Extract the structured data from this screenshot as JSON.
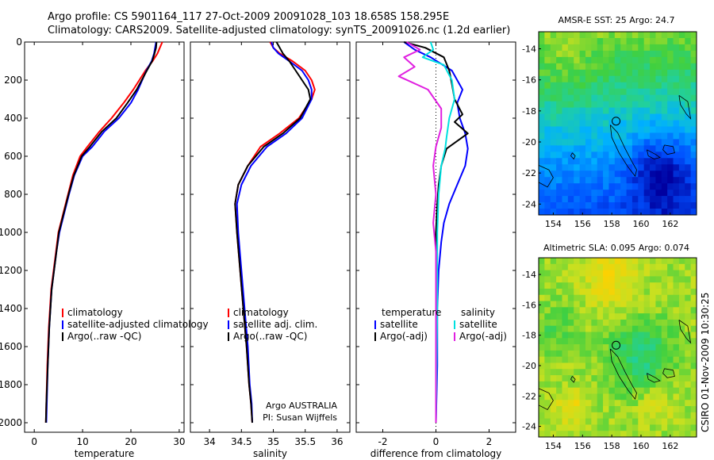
{
  "header": {
    "line1": "Argo profile: CS 5901164_117 27-Oct-2009 20091028_103 18.658S 158.295E",
    "line2": "Climatology: CARS2009. Satellite-adjusted climatology: synTS_20091026.nc (1.2d earlier)"
  },
  "side_label": "CSIRO 01-Nov-2009 10:30:25",
  "chart_data": [
    {
      "id": "temperature",
      "type": "line",
      "xlabel": "temperature",
      "ylabel": "",
      "xlim": [
        -2,
        31
      ],
      "ylim": [
        2050,
        0
      ],
      "xticks": [
        0,
        10,
        20,
        30
      ],
      "yticks": [
        0,
        200,
        400,
        600,
        800,
        1000,
        1200,
        1400,
        1600,
        1800,
        2000
      ],
      "legend": {
        "placement": "lower-right",
        "entries": [
          {
            "label": "climatology",
            "color": "#ff0000"
          },
          {
            "label": "satellite-adjusted climatology",
            "color": "#0000ff"
          },
          {
            "label": "Argo(..raw -QC)",
            "color": "#000000"
          }
        ]
      },
      "series": [
        {
          "name": "climatology",
          "color": "#ff0000",
          "x": [
            26.5,
            26.0,
            25.5,
            24.5,
            23.0,
            20.5,
            18.5,
            16.0,
            13.5,
            11.0,
            9.5,
            8.0,
            7.0,
            6.0,
            5.0,
            4.5,
            3.5,
            3.0,
            2.7,
            2.5,
            2.4
          ],
          "y": [
            0,
            30,
            60,
            100,
            150,
            250,
            320,
            400,
            470,
            550,
            600,
            700,
            800,
            900,
            1000,
            1100,
            1300,
            1500,
            1700,
            1900,
            2000
          ]
        },
        {
          "name": "satellite-adjusted climatology",
          "color": "#0000ff",
          "x": [
            25.2,
            25.0,
            24.8,
            24.3,
            23.2,
            21.5,
            20.0,
            17.5,
            14.5,
            12.0,
            10.0,
            8.3,
            7.2,
            6.2,
            5.2,
            4.6,
            3.6,
            3.1,
            2.8,
            2.6,
            2.5
          ],
          "y": [
            0,
            30,
            60,
            100,
            150,
            250,
            320,
            400,
            470,
            550,
            600,
            700,
            800,
            900,
            1000,
            1100,
            1300,
            1500,
            1700,
            1900,
            2000
          ]
        },
        {
          "name": "Argo(..raw -QC)",
          "color": "#000000",
          "x": [
            25.3,
            25.2,
            24.9,
            24.4,
            23.3,
            21.2,
            19.3,
            17.0,
            14.0,
            11.5,
            9.8,
            8.2,
            7.1,
            6.1,
            5.1,
            4.6,
            3.6,
            3.1,
            2.8,
            2.5,
            2.4
          ],
          "y": [
            0,
            30,
            60,
            100,
            150,
            250,
            320,
            400,
            470,
            550,
            600,
            700,
            800,
            900,
            1000,
            1100,
            1300,
            1500,
            1700,
            1900,
            2000
          ]
        }
      ]
    },
    {
      "id": "salinity",
      "type": "line",
      "xlabel": "salinity",
      "ylabel": "",
      "xlim": [
        33.7,
        36.2
      ],
      "ylim": [
        2050,
        0
      ],
      "xticks": [
        34,
        34.5,
        35,
        35.5,
        36
      ],
      "xticklabels": [
        "34",
        "34.5",
        "35",
        "35.5",
        "36"
      ],
      "yticks": [
        0,
        200,
        400,
        600,
        800,
        1000,
        1200,
        1400,
        1600,
        1800,
        2000
      ],
      "legend": {
        "placement": "lower-right",
        "entries": [
          {
            "label": "climatology",
            "color": "#ff0000"
          },
          {
            "label": "satellite adj. clim.",
            "color": "#0000ff"
          },
          {
            "label": "Argo(..raw -QC)",
            "color": "#000000"
          }
        ]
      },
      "annotation": [
        "Argo AUSTRALIA",
        "PI: Susan Wijffels"
      ],
      "series": [
        {
          "name": "climatology",
          "color": "#ff0000",
          "x": [
            34.95,
            35.0,
            35.1,
            35.3,
            35.5,
            35.6,
            35.65,
            35.6,
            35.4,
            35.1,
            34.8,
            34.6,
            34.45,
            34.4,
            34.43,
            34.48,
            34.53,
            34.58,
            34.62,
            34.65,
            34.67
          ],
          "y": [
            0,
            30,
            60,
            100,
            150,
            200,
            250,
            300,
            400,
            480,
            550,
            650,
            750,
            850,
            1000,
            1200,
            1400,
            1600,
            1800,
            1900,
            2000
          ]
        },
        {
          "name": "satellite adj. clim.",
          "color": "#0000ff",
          "x": [
            34.97,
            35.0,
            35.08,
            35.25,
            35.45,
            35.55,
            35.6,
            35.6,
            35.45,
            35.2,
            34.9,
            34.65,
            34.5,
            34.43,
            34.45,
            34.5,
            34.55,
            34.6,
            34.63,
            34.66,
            34.67
          ],
          "y": [
            0,
            30,
            60,
            100,
            150,
            200,
            250,
            300,
            400,
            480,
            550,
            650,
            750,
            850,
            1000,
            1200,
            1400,
            1600,
            1800,
            1900,
            2000
          ]
        },
        {
          "name": "Argo(..raw -QC)",
          "color": "#000000",
          "x": [
            35.05,
            35.1,
            35.15,
            35.25,
            35.35,
            35.45,
            35.55,
            35.58,
            35.42,
            35.15,
            34.85,
            34.6,
            34.45,
            34.4,
            34.43,
            34.48,
            34.53,
            34.58,
            34.62,
            34.65,
            34.67
          ],
          "y": [
            0,
            30,
            60,
            100,
            150,
            200,
            250,
            300,
            400,
            480,
            550,
            650,
            750,
            850,
            1000,
            1200,
            1400,
            1600,
            1800,
            1900,
            2000
          ]
        }
      ]
    },
    {
      "id": "difference",
      "type": "line",
      "xlabel": "difference from climatology",
      "ylabel": "",
      "xlim": [
        -3,
        3
      ],
      "ylim": [
        2050,
        0
      ],
      "xticks": [
        -2,
        0,
        2
      ],
      "yticks": [
        0,
        200,
        400,
        600,
        800,
        1000,
        1200,
        1400,
        1600,
        1800,
        2000
      ],
      "legend": {
        "placement": "lower-center",
        "left_title": "temperature",
        "right_title": "salinity",
        "entries": [
          {
            "label": "satellite",
            "color": "#0000ff",
            "column": "left"
          },
          {
            "label": "Argo(-adj)",
            "color": "#000000",
            "column": "left"
          },
          {
            "label": "satellite",
            "color": "#00e0e0",
            "column": "right"
          },
          {
            "label": "Argo(-adj)",
            "color": "#e020e0",
            "column": "right"
          }
        ]
      },
      "series": [
        {
          "name": "temperature satellite",
          "color": "#0000ff",
          "x": [
            -1.2,
            -0.8,
            -0.2,
            0.6,
            1.0,
            0.8,
            0.9,
            1.1,
            1.2,
            1.1,
            0.8,
            0.5,
            0.3,
            0.2,
            0.1,
            0.05,
            0.05,
            0.0
          ],
          "y": [
            0,
            40,
            80,
            150,
            250,
            320,
            400,
            480,
            560,
            650,
            750,
            850,
            950,
            1050,
            1200,
            1400,
            1700,
            2000
          ]
        },
        {
          "name": "temperature Argo(-adj)",
          "color": "#000000",
          "x": [
            -1.2,
            -0.4,
            0.3,
            0.5,
            0.6,
            0.7,
            1.0,
            0.7,
            1.2,
            0.4,
            0.2,
            0.1,
            0.05,
            0.0,
            0.0,
            0.0,
            0.0
          ],
          "y": [
            0,
            30,
            80,
            150,
            220,
            300,
            380,
            420,
            480,
            560,
            650,
            750,
            850,
            1000,
            1300,
            1700,
            2000
          ]
        },
        {
          "name": "salinity satellite",
          "color": "#00e0e0",
          "x": [
            -0.2,
            -0.1,
            -0.5,
            0.3,
            0.6,
            0.7,
            0.5,
            0.4,
            0.35,
            0.2,
            0.1,
            0.05,
            0.05,
            0.0
          ],
          "y": [
            0,
            40,
            80,
            120,
            200,
            300,
            400,
            500,
            560,
            650,
            800,
            1000,
            1400,
            2000
          ]
        },
        {
          "name": "salinity Argo(-adj)",
          "color": "#e020e0",
          "x": [
            -1.1,
            -0.6,
            -1.2,
            -0.8,
            -1.4,
            -0.3,
            0.2,
            0.2,
            0.0,
            -0.1,
            0.0,
            -0.1,
            0.0,
            0.0,
            0.0
          ],
          "y": [
            0,
            40,
            80,
            130,
            180,
            250,
            350,
            450,
            550,
            650,
            800,
            950,
            1100,
            1400,
            2000
          ]
        }
      ]
    },
    {
      "id": "sst-map",
      "type": "heatmap",
      "title": "AMSR-E SST: 25 Argo: 24.7",
      "xlim": [
        153,
        163.8
      ],
      "ylim": [
        -24.7,
        -12.9
      ],
      "xticks": [
        154,
        156,
        158,
        160,
        162
      ],
      "yticks": [
        -14,
        -16,
        -18,
        -20,
        -22,
        -24
      ],
      "marker": {
        "lon": 158.295,
        "lat": -18.658
      }
    },
    {
      "id": "sla-map",
      "type": "heatmap",
      "title": "Altimetric SLA: 0.095 Argo: 0.074",
      "xlim": [
        153,
        163.8
      ],
      "ylim": [
        -24.7,
        -12.9
      ],
      "xticks": [
        154,
        156,
        158,
        160,
        162
      ],
      "yticks": [
        -14,
        -16,
        -18,
        -20,
        -22,
        -24
      ],
      "marker": {
        "lon": 158.295,
        "lat": -18.658
      }
    }
  ]
}
